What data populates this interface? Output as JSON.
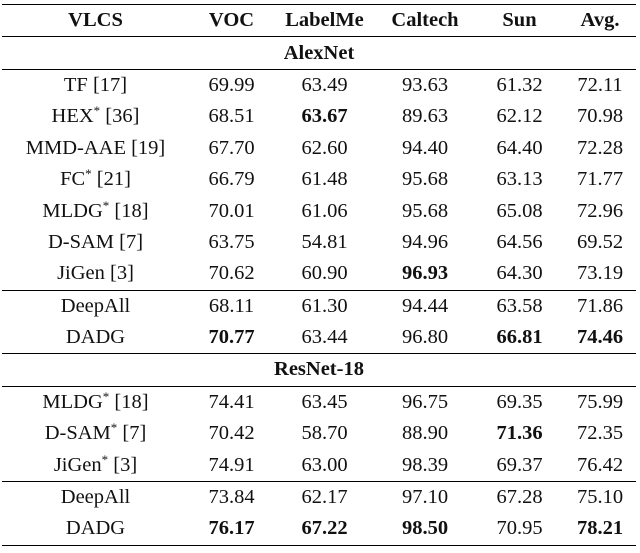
{
  "header": [
    "VLCS",
    "VOC",
    "LabelMe",
    "Caltech",
    "Sun",
    "Avg."
  ],
  "sections": [
    {
      "title": "AlexNet",
      "groups": [
        [
          {
            "method": "TF [17]",
            "values": [
              "69.99",
              "63.49",
              "93.63",
              "61.32",
              "72.11"
            ],
            "bold": []
          },
          {
            "method": "HEX* [36]",
            "values": [
              "68.51",
              "63.67",
              "89.63",
              "62.12",
              "70.98"
            ],
            "bold": [
              1
            ]
          },
          {
            "method": "MMD-AAE [19]",
            "values": [
              "67.70",
              "62.60",
              "94.40",
              "64.40",
              "72.28"
            ],
            "bold": []
          },
          {
            "method": "FC* [21]",
            "values": [
              "66.79",
              "61.48",
              "95.68",
              "63.13",
              "71.77"
            ],
            "bold": []
          },
          {
            "method": "MLDG* [18]",
            "values": [
              "70.01",
              "61.06",
              "95.68",
              "65.08",
              "72.96"
            ],
            "bold": []
          },
          {
            "method": "D-SAM [7]",
            "values": [
              "63.75",
              "54.81",
              "94.96",
              "64.56",
              "69.52"
            ],
            "bold": []
          },
          {
            "method": "JiGen [3]",
            "values": [
              "70.62",
              "60.90",
              "96.93",
              "64.30",
              "73.19"
            ],
            "bold": [
              2
            ]
          }
        ],
        [
          {
            "method": "DeepAll",
            "values": [
              "68.11",
              "61.30",
              "94.44",
              "63.58",
              "71.86"
            ],
            "bold": []
          },
          {
            "method": "DADG",
            "values": [
              "70.77",
              "63.44",
              "96.80",
              "66.81",
              "74.46"
            ],
            "bold": [
              0,
              3,
              4
            ]
          }
        ]
      ]
    },
    {
      "title": "ResNet-18",
      "groups": [
        [
          {
            "method": "MLDG* [18]",
            "values": [
              "74.41",
              "63.45",
              "96.75",
              "69.35",
              "75.99"
            ],
            "bold": []
          },
          {
            "method": "D-SAM* [7]",
            "values": [
              "70.42",
              "58.70",
              "88.90",
              "71.36",
              "72.35"
            ],
            "bold": [
              3
            ]
          },
          {
            "method": "JiGen* [3]",
            "values": [
              "74.91",
              "63.00",
              "98.39",
              "69.37",
              "76.42"
            ],
            "bold": []
          }
        ],
        [
          {
            "method": "DeepAll",
            "values": [
              "73.84",
              "62.17",
              "97.10",
              "67.28",
              "75.10"
            ],
            "bold": []
          },
          {
            "method": "DADG",
            "values": [
              "76.17",
              "67.22",
              "98.50",
              "70.95",
              "78.21"
            ],
            "bold": [
              0,
              1,
              2,
              4
            ]
          }
        ]
      ]
    }
  ]
}
